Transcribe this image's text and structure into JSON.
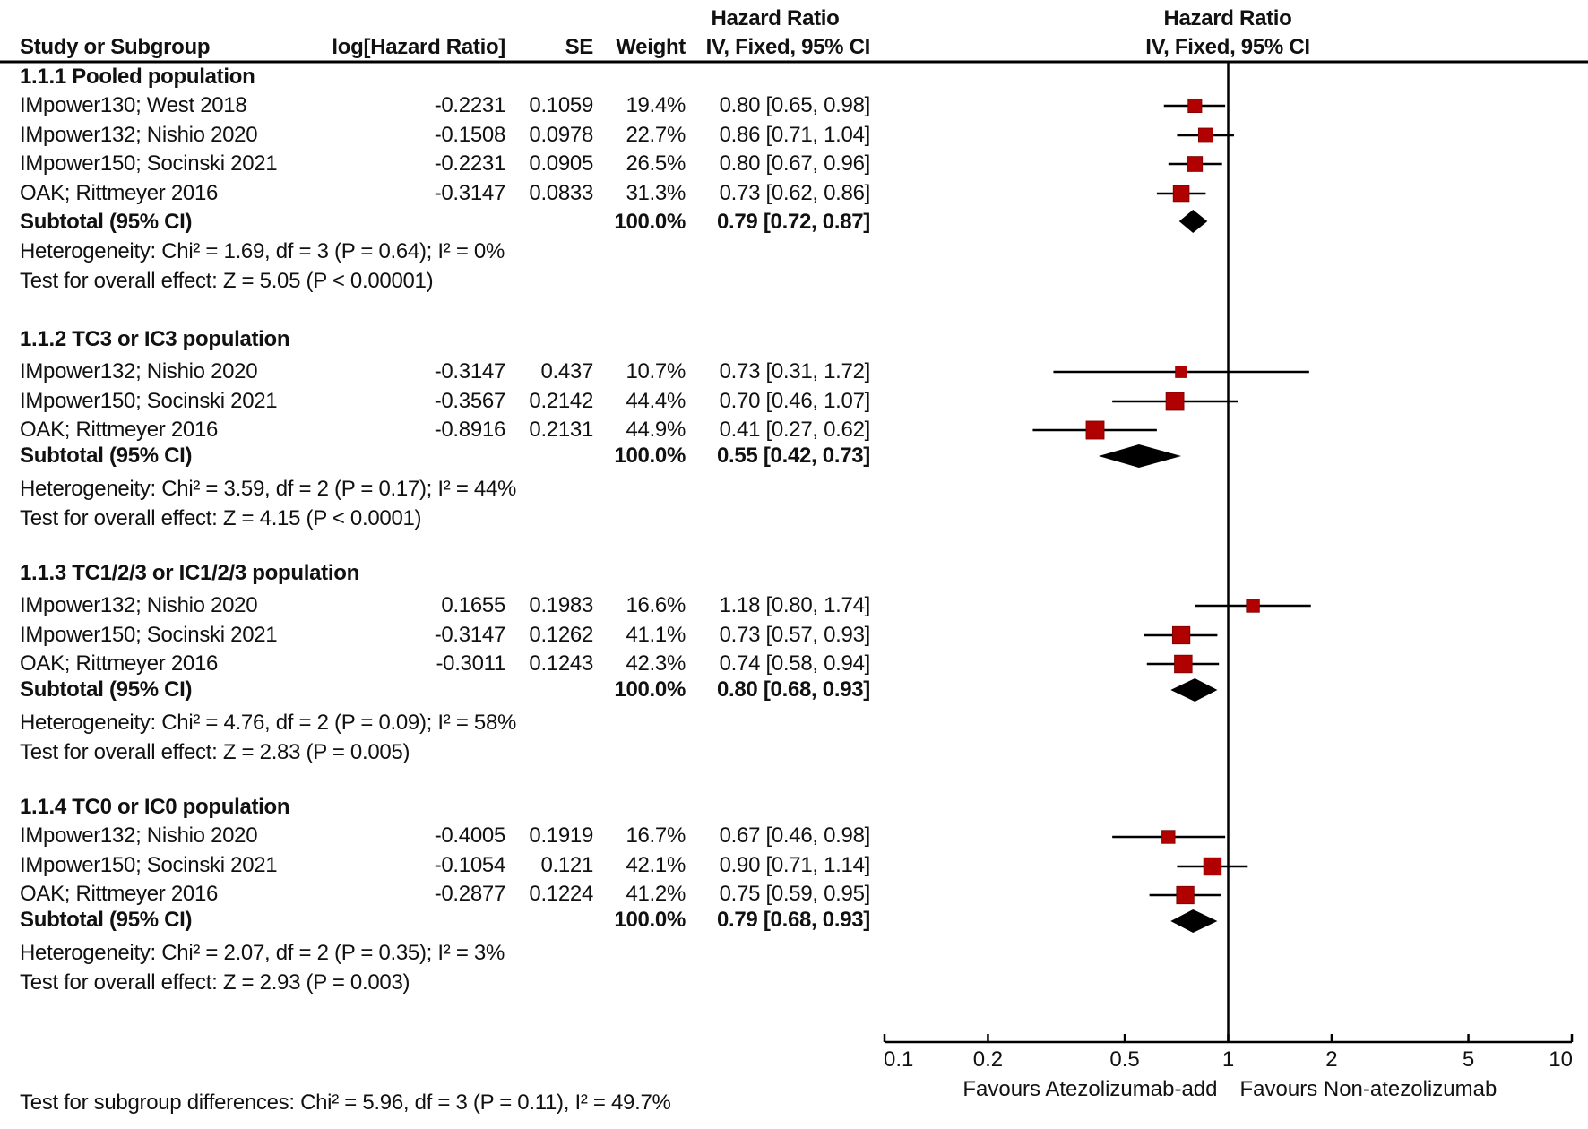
{
  "header": {
    "study_col": "Study or Subgroup",
    "loghr_col": "log[Hazard Ratio]",
    "se_col": "SE",
    "weight_col": "Weight",
    "hr_col_line1": "Hazard Ratio",
    "hr_col_line2": "IV, Fixed, 95% CI",
    "plot_col_line1": "Hazard Ratio",
    "plot_col_line2": "IV, Fixed, 95% CI"
  },
  "footer": {
    "subgroup_differences": "Test for subgroup differences: Chi² = 5.96, df = 3 (P = 0.11), I² = 49.7%"
  },
  "colors": {
    "marker": "#b00000",
    "diamond": "#000000",
    "lines": "#000000"
  },
  "chart_data": {
    "type": "forest",
    "title": "",
    "effect_measure": "Hazard Ratio (IV, Fixed, 95% CI)",
    "x_scale": "log",
    "xlim": [
      0.1,
      10
    ],
    "x_ticks": [
      0.1,
      0.2,
      0.5,
      1,
      2,
      5,
      10
    ],
    "x_tick_labels": [
      "0.1",
      "0.2",
      "0.5",
      "1",
      "2",
      "5",
      "10"
    ],
    "null_line": 1,
    "favours_left": "Favours Atezolizumab-add",
    "favours_right": "Favours Non-atezolizumab",
    "subgroups": [
      {
        "label": "1.1.1 Pooled population",
        "studies": [
          {
            "name": "IMpower130; West 2018",
            "loghr": "-0.2231",
            "se": "0.1059",
            "weight": "19.4%",
            "weight_value": 19.4,
            "hr_text": "0.80 [0.65, 0.98]",
            "hr": 0.8,
            "lo": 0.65,
            "hi": 0.98
          },
          {
            "name": "IMpower132; Nishio 2020",
            "loghr": "-0.1508",
            "se": "0.0978",
            "weight": "22.7%",
            "weight_value": 22.7,
            "hr_text": "0.86 [0.71, 1.04]",
            "hr": 0.86,
            "lo": 0.71,
            "hi": 1.04
          },
          {
            "name": "IMpower150; Socinski 2021",
            "loghr": "-0.2231",
            "se": "0.0905",
            "weight": "26.5%",
            "weight_value": 26.5,
            "hr_text": "0.80 [0.67, 0.96]",
            "hr": 0.8,
            "lo": 0.67,
            "hi": 0.96
          },
          {
            "name": "OAK; Rittmeyer 2016",
            "loghr": "-0.3147",
            "se": "0.0833",
            "weight": "31.3%",
            "weight_value": 31.3,
            "hr_text": "0.73 [0.62, 0.86]",
            "hr": 0.73,
            "lo": 0.62,
            "hi": 0.86
          }
        ],
        "subtotal": {
          "label": "Subtotal (95% CI)",
          "weight": "100.0%",
          "hr_text": "0.79 [0.72, 0.87]",
          "hr": 0.79,
          "lo": 0.72,
          "hi": 0.87
        },
        "heterogeneity": "Heterogeneity: Chi² = 1.69, df = 3 (P = 0.64); I² = 0%",
        "overall_effect": "Test for overall effect: Z = 5.05 (P < 0.00001)"
      },
      {
        "label": "1.1.2 TC3 or IC3 population",
        "studies": [
          {
            "name": "IMpower132; Nishio 2020",
            "loghr": "-0.3147",
            "se": "0.437",
            "weight": "10.7%",
            "weight_value": 10.7,
            "hr_text": "0.73 [0.31, 1.72]",
            "hr": 0.73,
            "lo": 0.31,
            "hi": 1.72
          },
          {
            "name": "IMpower150; Socinski 2021",
            "loghr": "-0.3567",
            "se": "0.2142",
            "weight": "44.4%",
            "weight_value": 44.4,
            "hr_text": "0.70 [0.46, 1.07]",
            "hr": 0.7,
            "lo": 0.46,
            "hi": 1.07
          },
          {
            "name": "OAK; Rittmeyer 2016",
            "loghr": "-0.8916",
            "se": "0.2131",
            "weight": "44.9%",
            "weight_value": 44.9,
            "hr_text": "0.41 [0.27, 0.62]",
            "hr": 0.41,
            "lo": 0.27,
            "hi": 0.62
          }
        ],
        "subtotal": {
          "label": "Subtotal (95% CI)",
          "weight": "100.0%",
          "hr_text": "0.55 [0.42, 0.73]",
          "hr": 0.55,
          "lo": 0.42,
          "hi": 0.73
        },
        "heterogeneity": "Heterogeneity: Chi² = 3.59, df = 2 (P = 0.17); I² = 44%",
        "overall_effect": "Test for overall effect: Z = 4.15 (P < 0.0001)"
      },
      {
        "label": "1.1.3 TC1/2/3 or IC1/2/3 population",
        "studies": [
          {
            "name": "IMpower132; Nishio 2020",
            "loghr": "0.1655",
            "se": "0.1983",
            "weight": "16.6%",
            "weight_value": 16.6,
            "hr_text": "1.18 [0.80, 1.74]",
            "hr": 1.18,
            "lo": 0.8,
            "hi": 1.74
          },
          {
            "name": "IMpower150; Socinski 2021",
            "loghr": "-0.3147",
            "se": "0.1262",
            "weight": "41.1%",
            "weight_value": 41.1,
            "hr_text": "0.73 [0.57, 0.93]",
            "hr": 0.73,
            "lo": 0.57,
            "hi": 0.93
          },
          {
            "name": "OAK; Rittmeyer 2016",
            "loghr": "-0.3011",
            "se": "0.1243",
            "weight": "42.3%",
            "weight_value": 42.3,
            "hr_text": "0.74 [0.58, 0.94]",
            "hr": 0.74,
            "lo": 0.58,
            "hi": 0.94
          }
        ],
        "subtotal": {
          "label": "Subtotal (95% CI)",
          "weight": "100.0%",
          "hr_text": "0.80 [0.68, 0.93]",
          "hr": 0.8,
          "lo": 0.68,
          "hi": 0.93
        },
        "heterogeneity": "Heterogeneity: Chi² = 4.76, df = 2 (P = 0.09); I² = 58%",
        "overall_effect": "Test for overall effect: Z = 2.83 (P = 0.005)"
      },
      {
        "label": "1.1.4 TC0 or IC0 population",
        "studies": [
          {
            "name": "IMpower132; Nishio 2020",
            "loghr": "-0.4005",
            "se": "0.1919",
            "weight": "16.7%",
            "weight_value": 16.7,
            "hr_text": "0.67 [0.46, 0.98]",
            "hr": 0.67,
            "lo": 0.46,
            "hi": 0.98
          },
          {
            "name": "IMpower150; Socinski 2021",
            "loghr": "-0.1054",
            "se": "0.121",
            "weight": "42.1%",
            "weight_value": 42.1,
            "hr_text": "0.90 [0.71, 1.14]",
            "hr": 0.9,
            "lo": 0.71,
            "hi": 1.14
          },
          {
            "name": "OAK; Rittmeyer 2016",
            "loghr": "-0.2877",
            "se": "0.1224",
            "weight": "41.2%",
            "weight_value": 41.2,
            "hr_text": "0.75 [0.59, 0.95]",
            "hr": 0.75,
            "lo": 0.59,
            "hi": 0.95
          }
        ],
        "subtotal": {
          "label": "Subtotal (95% CI)",
          "weight": "100.0%",
          "hr_text": "0.79 [0.68, 0.93]",
          "hr": 0.79,
          "lo": 0.68,
          "hi": 0.93
        },
        "heterogeneity": "Heterogeneity: Chi² = 2.07, df = 2 (P = 0.35); I² = 3%",
        "overall_effect": "Test for overall effect: Z = 2.93 (P = 0.003)"
      }
    ]
  }
}
